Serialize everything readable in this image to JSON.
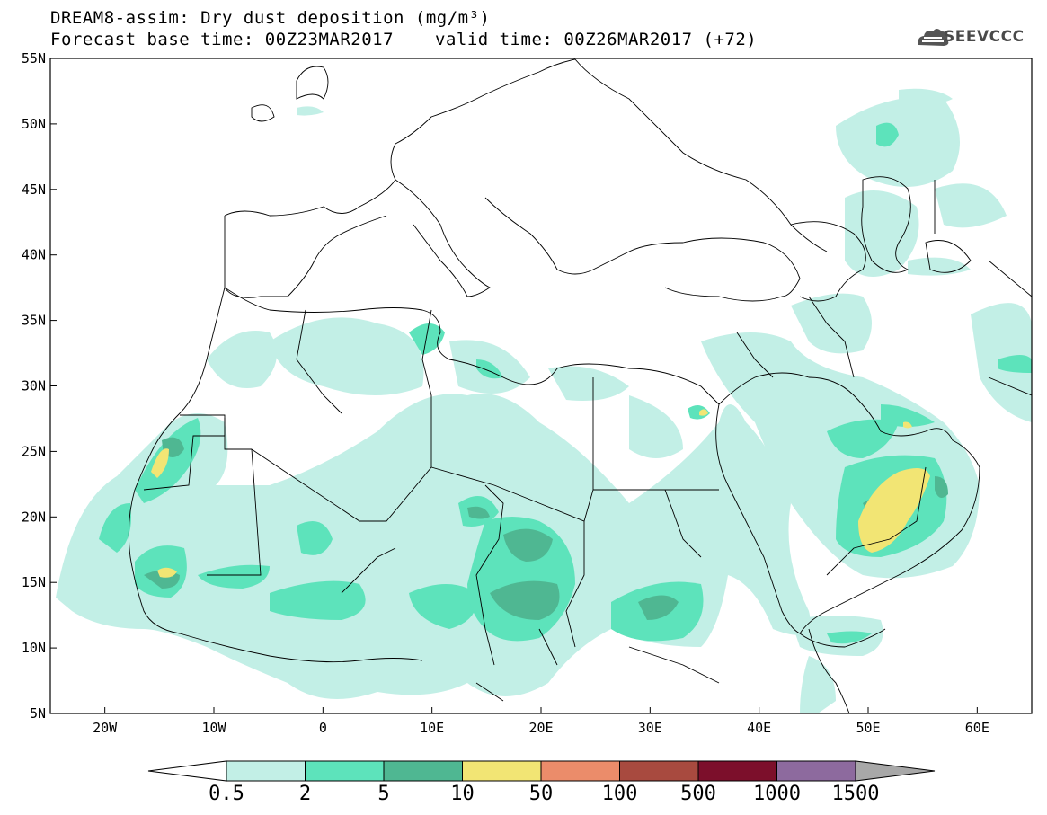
{
  "header": {
    "title_line1": "DREAM8-assim: Dry dust deposition (mg/m³)",
    "base_time": "Forecast base time: 00Z23MAR2017",
    "valid_time": "valid time: 00Z26MAR2017 (+72)",
    "logo_text": "SEEVCCC"
  },
  "map": {
    "lon_range": [
      -25,
      65
    ],
    "lat_range": [
      5,
      55
    ],
    "lon_ticks": [
      {
        "value": -20,
        "label": "20W"
      },
      {
        "value": -10,
        "label": "10W"
      },
      {
        "value": 0,
        "label": "0"
      },
      {
        "value": 10,
        "label": "10E"
      },
      {
        "value": 20,
        "label": "20E"
      },
      {
        "value": 30,
        "label": "30E"
      },
      {
        "value": 40,
        "label": "40E"
      },
      {
        "value": 50,
        "label": "50E"
      },
      {
        "value": 60,
        "label": "60E"
      }
    ],
    "lat_ticks": [
      {
        "value": 55,
        "label": "55N"
      },
      {
        "value": 50,
        "label": "50N"
      },
      {
        "value": 45,
        "label": "45N"
      },
      {
        "value": 40,
        "label": "40N"
      },
      {
        "value": 35,
        "label": "35N"
      },
      {
        "value": 30,
        "label": "30N"
      },
      {
        "value": 25,
        "label": "25N"
      },
      {
        "value": 20,
        "label": "20N"
      },
      {
        "value": 15,
        "label": "15N"
      },
      {
        "value": 10,
        "label": "10N"
      },
      {
        "value": 5,
        "label": "5N"
      }
    ]
  },
  "colorbar": {
    "bins": [
      {
        "color": "#c2efe6"
      },
      {
        "color": "#5de3bb"
      },
      {
        "color": "#4fb792"
      },
      {
        "color": "#f2e574"
      },
      {
        "color": "#eb8c6a"
      },
      {
        "color": "#a84a3f"
      },
      {
        "color": "#7c0f2b"
      },
      {
        "color": "#8d6a9e"
      }
    ],
    "under_color": "#ffffff",
    "over_color": "#a8a8a8",
    "labels": [
      "0.5",
      "2",
      "5",
      "10",
      "50",
      "100",
      "500",
      "1000",
      "1500"
    ]
  }
}
